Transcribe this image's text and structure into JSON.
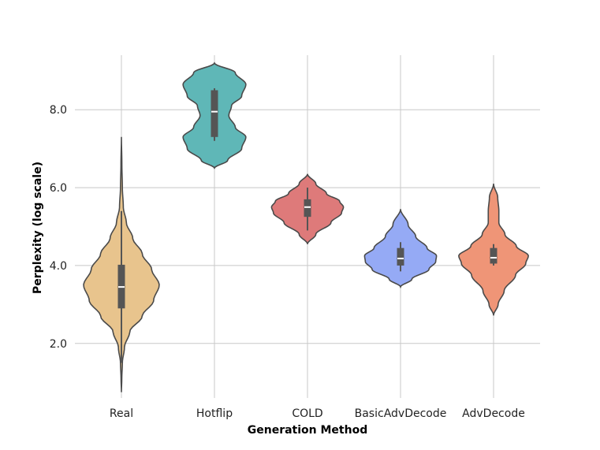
{
  "chart_data": {
    "type": "violin",
    "xlabel": "Generation Method",
    "ylabel": "Perplexity (log scale)",
    "categories": [
      "Real",
      "Hotflip",
      "COLD",
      "BasicAdvDecode",
      "AdvDecode"
    ],
    "ylim": [
      0.6,
      9.4
    ],
    "yticks": [
      2.0,
      4.0,
      6.0,
      8.0
    ],
    "ytick_labels": [
      "2.0",
      "4.0",
      "6.0",
      "8.0"
    ],
    "grid": true,
    "colors": [
      "#e8c48d",
      "#5fb7b7",
      "#de7a7a",
      "#95aaf5",
      "#ef9577"
    ],
    "series": [
      {
        "q1": 2.9,
        "median": 3.45,
        "q3": 4.02,
        "whisker_low": 1.5,
        "whisker_high": 5.4,
        "profile": [
          [
            0.75,
            0.0
          ],
          [
            1.1,
            0.01
          ],
          [
            1.5,
            0.025
          ],
          [
            1.9,
            0.08
          ],
          [
            2.3,
            0.22
          ],
          [
            2.7,
            0.55
          ],
          [
            3.1,
            0.85
          ],
          [
            3.5,
            1.0
          ],
          [
            3.9,
            0.8
          ],
          [
            4.3,
            0.55
          ],
          [
            4.7,
            0.3
          ],
          [
            5.1,
            0.13
          ],
          [
            5.5,
            0.05
          ],
          [
            6.0,
            0.025
          ],
          [
            6.6,
            0.012
          ],
          [
            7.3,
            0.0
          ]
        ]
      },
      {
        "q1": 7.3,
        "median": 7.95,
        "q3": 8.5,
        "whisker_low": 7.2,
        "whisker_high": 8.55,
        "profile": [
          [
            6.5,
            0.0
          ],
          [
            6.7,
            0.35
          ],
          [
            7.0,
            0.72
          ],
          [
            7.3,
            0.83
          ],
          [
            7.55,
            0.55
          ],
          [
            7.85,
            0.38
          ],
          [
            8.1,
            0.45
          ],
          [
            8.35,
            0.72
          ],
          [
            8.65,
            0.83
          ],
          [
            8.95,
            0.55
          ],
          [
            9.2,
            0.0
          ]
        ]
      },
      {
        "q1": 5.25,
        "median": 5.5,
        "q3": 5.7,
        "whisker_low": 4.9,
        "whisker_high": 6.0,
        "profile": [
          [
            4.55,
            0.0
          ],
          [
            4.8,
            0.22
          ],
          [
            5.1,
            0.62
          ],
          [
            5.35,
            0.9
          ],
          [
            5.5,
            0.95
          ],
          [
            5.65,
            0.85
          ],
          [
            5.85,
            0.5
          ],
          [
            6.1,
            0.22
          ],
          [
            6.35,
            0.0
          ]
        ]
      },
      {
        "q1": 4.0,
        "median": 4.18,
        "q3": 4.45,
        "whisker_low": 3.85,
        "whisker_high": 4.6,
        "profile": [
          [
            3.45,
            0.0
          ],
          [
            3.65,
            0.3
          ],
          [
            3.9,
            0.75
          ],
          [
            4.1,
            0.93
          ],
          [
            4.25,
            0.95
          ],
          [
            4.45,
            0.7
          ],
          [
            4.75,
            0.4
          ],
          [
            5.05,
            0.2
          ],
          [
            5.45,
            0.0
          ]
        ]
      },
      {
        "q1": 4.05,
        "median": 4.2,
        "q3": 4.45,
        "whisker_low": 4.0,
        "whisker_high": 4.55,
        "profile": [
          [
            2.72,
            0.0
          ],
          [
            3.0,
            0.12
          ],
          [
            3.35,
            0.28
          ],
          [
            3.75,
            0.58
          ],
          [
            4.05,
            0.85
          ],
          [
            4.25,
            0.92
          ],
          [
            4.5,
            0.6
          ],
          [
            4.8,
            0.3
          ],
          [
            5.1,
            0.14
          ],
          [
            5.4,
            0.14
          ],
          [
            5.75,
            0.11
          ],
          [
            6.1,
            0.0
          ]
        ]
      }
    ]
  }
}
